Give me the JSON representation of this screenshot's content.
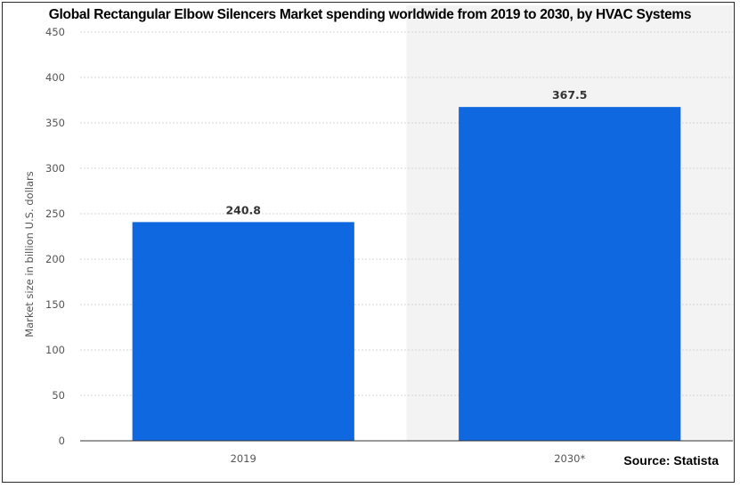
{
  "chart_data": {
    "type": "bar",
    "title": "Global Rectangular Elbow Silencers Market spending worldwide from 2019 to 2030, by HVAC Systems",
    "categories": [
      "2019",
      "2030*"
    ],
    "values": [
      240.8,
      367.5
    ],
    "value_labels": [
      "240.8",
      "367.5"
    ],
    "xlabel": "",
    "ylabel": "Market size in billion U.S. dollars",
    "ylim": [
      0,
      450
    ],
    "yticks": [
      0,
      50,
      100,
      150,
      200,
      250,
      300,
      350,
      400,
      450
    ],
    "grid": true,
    "forecast_shaded_category": "2030*",
    "source": "Source: Statista",
    "colors": {
      "bar": "#0f68e0",
      "forecast_band": "#f3f3f3",
      "grid": "#d6d6d6",
      "axis": "#333333"
    }
  }
}
